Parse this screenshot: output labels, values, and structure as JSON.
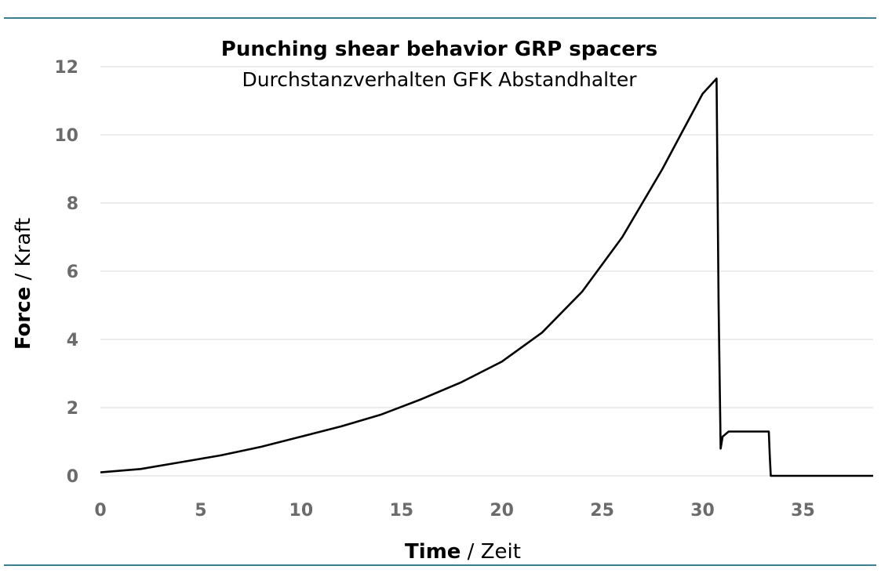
{
  "colors": {
    "rule": "#3a7f8f",
    "grid": "#d9d9d9",
    "line": "#000000",
    "tick": "#6b6b6b"
  },
  "chart_data": {
    "type": "line",
    "title": "Punching shear behavior GRP spacers",
    "subtitle": "Durchstanzverhalten GFK Abstandhalter",
    "xlabel": {
      "bold": "Time",
      "sep": " / ",
      "normal": "Zeit"
    },
    "ylabel": {
      "bold": "Force",
      "sep": " / ",
      "normal": "Kraft"
    },
    "xlim": [
      0,
      38.5
    ],
    "ylim": [
      0,
      12
    ],
    "xticks": [
      0,
      5,
      10,
      15,
      20,
      25,
      30,
      35
    ],
    "yticks": [
      0,
      2,
      4,
      6,
      8,
      10,
      12
    ],
    "grid": "horizontal",
    "legend": "none",
    "series": [
      {
        "x": [
          0,
          2,
          4,
          6,
          8,
          10,
          12,
          14,
          16,
          18,
          20,
          22,
          24,
          26,
          28,
          29,
          30,
          30.7,
          30.8,
          30.9,
          31.0,
          31.3,
          32,
          33.3,
          33.35,
          33.4,
          36,
          38.5
        ],
        "y": [
          0.1,
          0.2,
          0.4,
          0.6,
          0.85,
          1.15,
          1.45,
          1.8,
          2.25,
          2.75,
          3.35,
          4.2,
          5.4,
          7.0,
          9.0,
          10.1,
          11.2,
          11.65,
          5.0,
          0.8,
          1.15,
          1.3,
          1.3,
          1.3,
          0.6,
          0.0,
          0.0,
          0.0
        ]
      }
    ]
  }
}
